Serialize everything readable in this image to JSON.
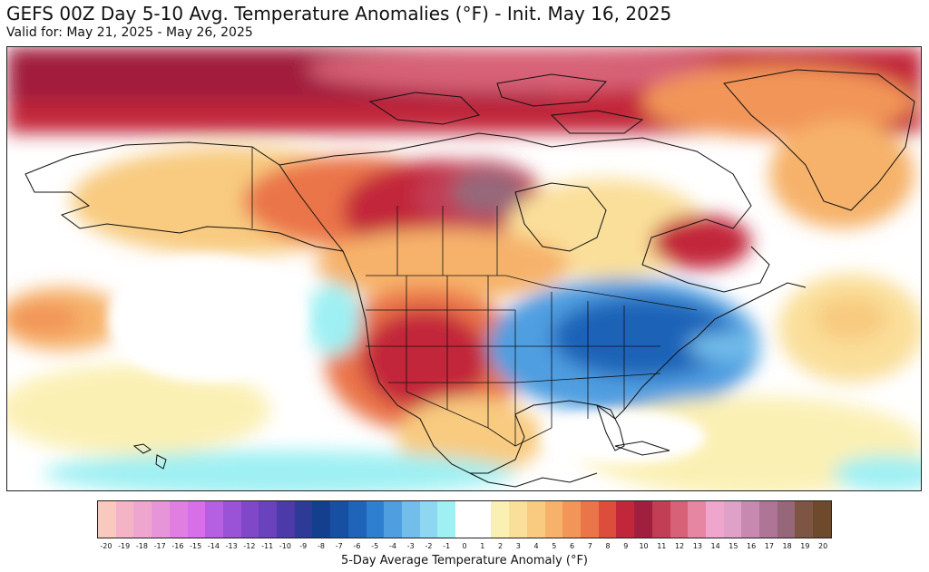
{
  "header": {
    "title": "GEFS 00Z Day 5-10 Avg. Temperature Anomalies (°F) - Init. May 16, 2025",
    "subtitle": "Valid for: May 21, 2025 - May 26, 2025"
  },
  "colorbar": {
    "label": "5-Day Average Temperature Anomaly (°F)",
    "ticks": [
      "-20",
      "-19",
      "-18",
      "-17",
      "-16",
      "-15",
      "-14",
      "-13",
      "-12",
      "-11",
      "-10",
      "-9",
      "-8",
      "-7",
      "-6",
      "-5",
      "-4",
      "-3",
      "-2",
      "-1",
      "0",
      "1",
      "2",
      "3",
      "4",
      "5",
      "6",
      "7",
      "8",
      "9",
      "10",
      "11",
      "12",
      "13",
      "14",
      "15",
      "16",
      "17",
      "18",
      "19",
      "20"
    ],
    "colors": [
      "#f9c9bd",
      "#f4b4c6",
      "#eea6cf",
      "#e795d9",
      "#e07fe1",
      "#d66fe8",
      "#b560e3",
      "#9a52d6",
      "#8048c9",
      "#6a42bd",
      "#4b3aa8",
      "#2d3b97",
      "#143f8e",
      "#1750a3",
      "#1f64b8",
      "#2e7fd0",
      "#4f9ee0",
      "#72bdea",
      "#8fd6f0",
      "#9ef0f3",
      "#ffffff",
      "#ffffff",
      "#fbf0b4",
      "#fadf9a",
      "#f8cb80",
      "#f6b26a",
      "#f29558",
      "#ea7548",
      "#dc4d3c",
      "#c2263a",
      "#a11f3e",
      "#c23e55",
      "#d76277",
      "#e686a2",
      "#efa6cc",
      "#e0a1c9",
      "#c889b0",
      "#ae7596",
      "#96677a",
      "#7e5445",
      "#6e4a2d"
    ]
  }
}
